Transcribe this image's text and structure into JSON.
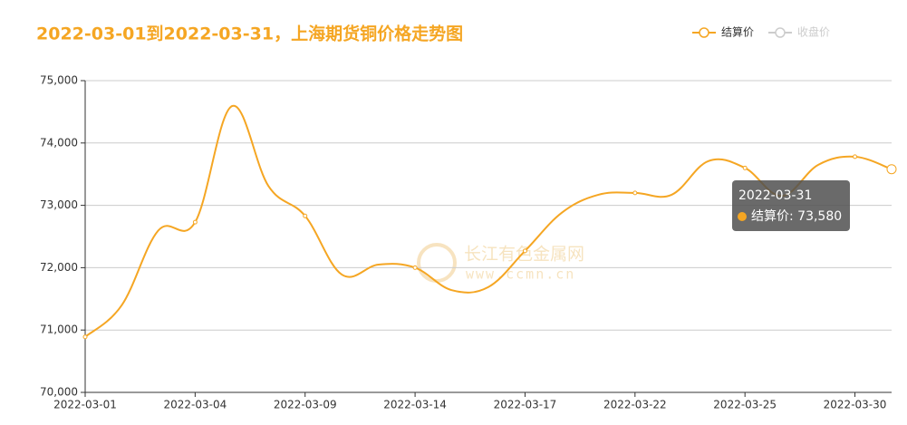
{
  "chart_data": {
    "type": "line",
    "title": "2022-03-01到2022-03-31，上海期货铜价格走势图",
    "categories": [
      "2022-03-01",
      null,
      null,
      "2022-03-04",
      null,
      null,
      "2022-03-09",
      null,
      null,
      "2022-03-14",
      null,
      null,
      "2022-03-17",
      null,
      null,
      "2022-03-22",
      null,
      null,
      "2022-03-25",
      null,
      null,
      "2022-03-30",
      "2022-03-31"
    ],
    "series": [
      {
        "name": "结算价",
        "color": "#f5a623",
        "values": [
          70890,
          71400,
          72600,
          72730,
          74590,
          73310,
          72830,
          71890,
          72050,
          72000,
          71640,
          71690,
          72270,
          72880,
          73170,
          73200,
          73170,
          73710,
          73600,
          73150,
          73650,
          73780,
          73580
        ]
      },
      {
        "name": "收盘价",
        "color": "#cccccc",
        "values": [
          null,
          null,
          null,
          null,
          null,
          null,
          null,
          null,
          null,
          null,
          null,
          null,
          null,
          null,
          null,
          null,
          null,
          null,
          null,
          null,
          null,
          null,
          null
        ]
      }
    ],
    "ylim": [
      70000,
      75000
    ],
    "yticks": [
      {
        "value": 70000,
        "label": "70,000"
      },
      {
        "value": 71000,
        "label": "71,000"
      },
      {
        "value": 72000,
        "label": "72,000"
      },
      {
        "value": 73000,
        "label": "73,000"
      },
      {
        "value": 74000,
        "label": "74,000"
      },
      {
        "value": 75000,
        "label": "75,000"
      }
    ],
    "grid": true,
    "legend": "top-right",
    "tooltip": {
      "label": "结算价: 73,580"
    },
    "watermark": {
      "name": "长江有色金属网",
      "url": "www.ccmn.cn"
    }
  }
}
